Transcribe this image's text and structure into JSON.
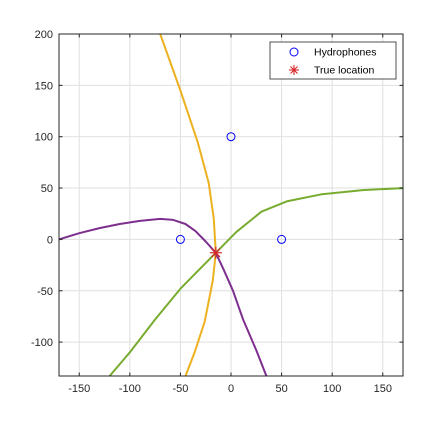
{
  "chart_data": {
    "type": "scatter",
    "xlim": [
      -170,
      170
    ],
    "ylim": [
      -133,
      200
    ],
    "x_ticks": [
      -150,
      -100,
      -50,
      0,
      50,
      100,
      150
    ],
    "y_ticks": [
      -100,
      -50,
      0,
      50,
      100,
      150,
      200
    ],
    "x_tick_labels": [
      "-150",
      "-100",
      "-50",
      "0",
      "50",
      "100",
      "150"
    ],
    "y_tick_labels": [
      "-100",
      "-50",
      "0",
      "50",
      "100",
      "150",
      "200"
    ],
    "grid": true,
    "legend_position": "top-right",
    "series": [
      {
        "name": "Hydrophones",
        "kind": "marker",
        "marker": "circle",
        "color": "#0000ff",
        "points": [
          [
            -50,
            0
          ],
          [
            0,
            100
          ],
          [
            50,
            0
          ]
        ]
      },
      {
        "name": "True location",
        "kind": "marker",
        "marker": "asterisk",
        "color": "#d62728",
        "points": [
          [
            -15,
            -13
          ]
        ]
      },
      {
        "kind": "curve",
        "color": "#edb120",
        "points": [
          [
            -70,
            200
          ],
          [
            -50,
            145
          ],
          [
            -33,
            95
          ],
          [
            -22,
            55
          ],
          [
            -17,
            20
          ],
          [
            -15,
            -13
          ],
          [
            -18,
            -40
          ],
          [
            -26,
            -80
          ],
          [
            -36,
            -110
          ],
          [
            -45,
            -133
          ]
        ]
      },
      {
        "kind": "curve",
        "color": "#77ac30",
        "points": [
          [
            -120,
            -133
          ],
          [
            -100,
            -110
          ],
          [
            -75,
            -78
          ],
          [
            -50,
            -48
          ],
          [
            -30,
            -28
          ],
          [
            -15,
            -13
          ],
          [
            5,
            7
          ],
          [
            30,
            27
          ],
          [
            55,
            37
          ],
          [
            90,
            44
          ],
          [
            130,
            48
          ],
          [
            170,
            50
          ]
        ]
      },
      {
        "kind": "curve",
        "color": "#7e2f8e",
        "points": [
          [
            -170,
            0
          ],
          [
            -150,
            6
          ],
          [
            -130,
            11
          ],
          [
            -110,
            15
          ],
          [
            -90,
            18
          ],
          [
            -70,
            20
          ],
          [
            -57,
            19
          ],
          [
            -45,
            15
          ],
          [
            -35,
            8
          ],
          [
            -25,
            -2
          ],
          [
            -15,
            -13
          ],
          [
            -7,
            -30
          ],
          [
            2,
            -50
          ],
          [
            12,
            -78
          ],
          [
            25,
            -108
          ],
          [
            35,
            -133
          ]
        ]
      }
    ]
  }
}
